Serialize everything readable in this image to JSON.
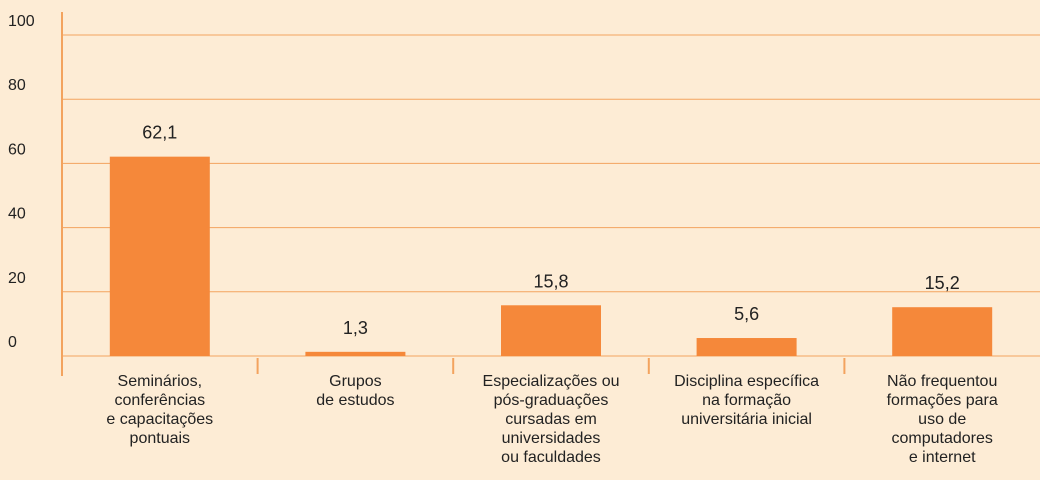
{
  "chart_data": {
    "type": "bar",
    "categories": [
      "Seminários,\nconferências\ne capacitações\npontuais",
      "Grupos\nde estudos",
      "Especializações ou\npós-graduações\ncursadas em\nuniversidades\nou faculdades",
      "Disciplina específica\nna formação\nuniversitária inicial",
      "Não frequentou\nformações para\nuso de\ncomputadores\ne internet"
    ],
    "values": [
      62.1,
      1.3,
      15.8,
      5.6,
      15.2
    ],
    "value_labels": [
      "62,1",
      "1,3",
      "15,8",
      "5,6",
      "15,2"
    ],
    "color": "#f5883a",
    "ylim": [
      0,
      100
    ],
    "yticks": [
      0,
      20,
      40,
      60,
      80,
      100
    ],
    "grid": true
  }
}
